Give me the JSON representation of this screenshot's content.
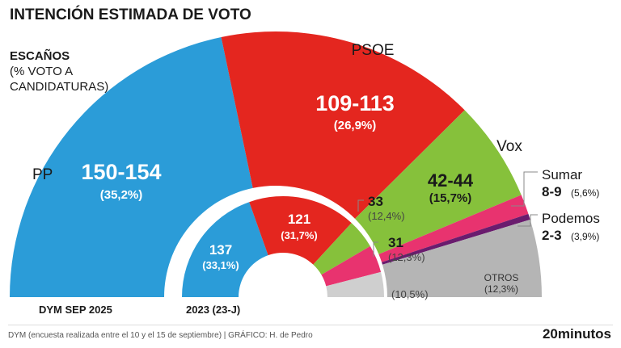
{
  "title": "INTENCIÓN ESTIMADA DE VOTO",
  "legend_heading": "ESCAÑOS",
  "legend_sub": [
    "(% VOTO A",
    "CANDIDATURAS)"
  ],
  "footer": "DYM (encuesta realizada entre el 10 y el 15 de septiembre)  |  GRÁFICO: H. de Pedro",
  "brand": "20minutos",
  "chart_data": [
    {
      "type": "semi-donut",
      "label": "DYM SEP 2025",
      "total_seats": 350,
      "series": [
        {
          "name": "PP",
          "seats": "150-154",
          "pct": "(35,2%)",
          "color": "#2b9cd8"
        },
        {
          "name": "PSOE",
          "seats": "109-113",
          "pct": "(26,9%)",
          "color": "#e4261f"
        },
        {
          "name": "Vox",
          "seats": "42-44",
          "pct": "(15,7%)",
          "color": "#86c13b"
        },
        {
          "name": "Sumar",
          "seats": "8-9",
          "pct": "(5,6%)",
          "color": "#e8336f"
        },
        {
          "name": "Podemos",
          "seats": "2-3",
          "pct": "(3,9%)",
          "color": "#6a1c6e"
        },
        {
          "name": "OTROS",
          "seats": "",
          "pct": "(12,3%)",
          "color": "#b5b5b5"
        }
      ]
    },
    {
      "type": "semi-donut",
      "label": "2023 (23-J)",
      "total_seats": 350,
      "series": [
        {
          "name": "PP",
          "seats": "137",
          "pct": "(33,1%)",
          "color": "#2b9cd8"
        },
        {
          "name": "PSOE",
          "seats": "121",
          "pct": "(31,7%)",
          "color": "#e4261f"
        },
        {
          "name": "Vox",
          "seats": "33",
          "pct": "(12,4%)",
          "color": "#86c13b"
        },
        {
          "name": "Sumar",
          "seats": "31",
          "pct": "(12,3%)",
          "color": "#e8336f"
        },
        {
          "name": "Otros",
          "seats": "",
          "pct": "(10,5%)",
          "color": "#cfcfcf"
        }
      ]
    }
  ]
}
